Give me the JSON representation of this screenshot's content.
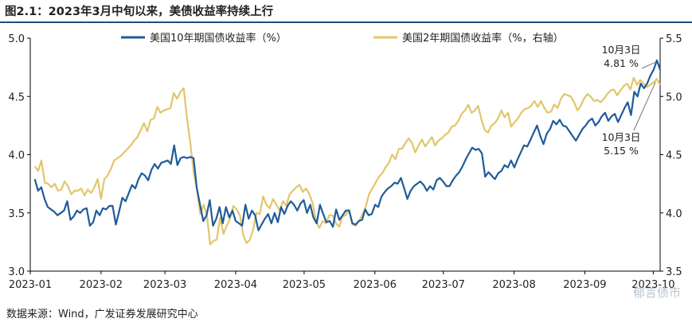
{
  "title": "图2.1：2023年3月中旬以来，美债收益率持续上行",
  "source": "数据来源：Wind，广发证券发展研究中心",
  "watermark": "郁言债市",
  "colors": {
    "series10y": "#1f5c99",
    "series2y": "#e2c66b",
    "axis": "#000000"
  },
  "chart_data": {
    "type": "line",
    "x_ticks": [
      "2023-01",
      "2023-02",
      "2023-03",
      "2023-04",
      "2023-05",
      "2023-06",
      "2023-07",
      "2023-08",
      "2023-09",
      "2023-10"
    ],
    "y_left": {
      "min": 3.0,
      "max": 5.0,
      "ticks": [
        "3.0",
        "3.5",
        "4.0",
        "4.5",
        "5.0"
      ]
    },
    "y_right": {
      "min": 3.5,
      "max": 5.5,
      "ticks": [
        "3.5",
        "4.0",
        "4.5",
        "5.0",
        "5.5"
      ]
    },
    "grid": false,
    "legend": "top",
    "series": [
      {
        "name": "美国10年期国债收益率（%）",
        "axis": "left",
        "start": "2023-01-03",
        "end": "2023-10-04",
        "values": [
          3.79,
          3.69,
          3.72,
          3.62,
          3.55,
          3.53,
          3.51,
          3.48,
          3.5,
          3.52,
          3.6,
          3.44,
          3.47,
          3.52,
          3.5,
          3.53,
          3.54,
          3.39,
          3.42,
          3.52,
          3.48,
          3.54,
          3.53,
          3.56,
          3.56,
          3.4,
          3.51,
          3.63,
          3.6,
          3.67,
          3.74,
          3.71,
          3.79,
          3.84,
          3.82,
          3.78,
          3.87,
          3.92,
          3.88,
          3.93,
          3.94,
          3.95,
          3.92,
          4.08,
          3.91,
          3.97,
          3.98,
          3.97,
          3.98,
          3.97,
          3.71,
          3.57,
          3.43,
          3.48,
          3.61,
          3.39,
          3.45,
          3.55,
          3.41,
          3.55,
          3.46,
          3.52,
          3.43,
          3.41,
          3.39,
          3.57,
          3.45,
          3.52,
          3.48,
          3.35,
          3.4,
          3.45,
          3.49,
          3.41,
          3.5,
          3.42,
          3.55,
          3.49,
          3.56,
          3.6,
          3.57,
          3.52,
          3.58,
          3.61,
          3.5,
          3.57,
          3.46,
          3.41,
          3.57,
          3.49,
          3.42,
          3.43,
          3.38,
          3.53,
          3.44,
          3.48,
          3.52,
          3.52,
          3.41,
          3.4,
          3.43,
          3.44,
          3.53,
          3.48,
          3.49,
          3.57,
          3.55,
          3.64,
          3.68,
          3.71,
          3.73,
          3.76,
          3.75,
          3.8,
          3.71,
          3.62,
          3.69,
          3.73,
          3.75,
          3.77,
          3.74,
          3.69,
          3.73,
          3.7,
          3.78,
          3.8,
          3.77,
          3.73,
          3.73,
          3.78,
          3.82,
          3.85,
          3.9,
          3.96,
          4.01,
          4.06,
          4.04,
          4.05,
          4.01,
          3.81,
          3.85,
          3.82,
          3.79,
          3.84,
          3.86,
          3.91,
          3.89,
          3.95,
          3.89,
          3.96,
          4.02,
          4.08,
          4.07,
          4.13,
          4.19,
          4.25,
          4.16,
          4.09,
          4.18,
          4.22,
          4.29,
          4.26,
          4.3,
          4.25,
          4.24,
          4.2,
          4.16,
          4.12,
          4.17,
          4.22,
          4.25,
          4.29,
          4.31,
          4.25,
          4.28,
          4.33,
          4.36,
          4.29,
          4.33,
          4.35,
          4.28,
          4.34,
          4.4,
          4.45,
          4.34,
          4.54,
          4.5,
          4.61,
          4.57,
          4.61,
          4.68,
          4.73,
          4.81,
          4.73
        ]
      },
      {
        "name": "美国2年期国债收益率（%，右轴）",
        "axis": "right",
        "start": "2023-01-03",
        "end": "2023-10-04",
        "values": [
          4.4,
          4.36,
          4.45,
          4.26,
          4.25,
          4.22,
          4.25,
          4.19,
          4.2,
          4.27,
          4.23,
          4.16,
          4.19,
          4.19,
          4.21,
          4.15,
          4.2,
          4.17,
          4.22,
          4.29,
          4.12,
          4.29,
          4.32,
          4.38,
          4.45,
          4.47,
          4.49,
          4.52,
          4.55,
          4.58,
          4.62,
          4.65,
          4.71,
          4.77,
          4.7,
          4.8,
          4.81,
          4.91,
          4.86,
          4.88,
          4.89,
          4.9,
          5.03,
          4.98,
          5.04,
          5.07,
          4.81,
          4.6,
          4.35,
          4.2,
          3.99,
          4.07,
          3.98,
          3.73,
          3.76,
          3.77,
          3.96,
          3.82,
          3.89,
          3.95,
          4.06,
          4.03,
          3.98,
          3.81,
          3.74,
          3.77,
          3.86,
          4.0,
          3.99,
          4.14,
          4.07,
          4.04,
          4.12,
          4.07,
          4.02,
          4.1,
          4.06,
          4.16,
          4.19,
          4.22,
          4.24,
          4.18,
          4.21,
          4.16,
          4.08,
          3.93,
          3.87,
          3.93,
          3.91,
          3.98,
          3.98,
          3.91,
          3.88,
          3.97,
          3.98,
          4.03,
          3.9,
          3.89,
          3.93,
          3.99,
          4.05,
          4.16,
          4.21,
          4.26,
          4.31,
          4.34,
          4.39,
          4.43,
          4.5,
          4.46,
          4.55,
          4.55,
          4.6,
          4.64,
          4.6,
          4.52,
          4.58,
          4.63,
          4.57,
          4.61,
          4.65,
          4.58,
          4.62,
          4.64,
          4.67,
          4.69,
          4.74,
          4.75,
          4.79,
          4.85,
          4.88,
          4.93,
          4.86,
          4.88,
          4.92,
          4.8,
          4.71,
          4.69,
          4.75,
          4.77,
          4.81,
          4.88,
          4.82,
          4.86,
          4.74,
          4.78,
          4.81,
          4.86,
          4.89,
          4.9,
          4.92,
          4.96,
          4.91,
          4.96,
          4.9,
          4.86,
          4.87,
          4.93,
          4.9,
          4.98,
          5.02,
          5.01,
          5.0,
          4.95,
          4.88,
          4.92,
          4.98,
          5.02,
          5.0,
          4.96,
          4.97,
          4.95,
          4.98,
          5.02,
          5.05,
          5.06,
          5.01,
          5.05,
          5.09,
          5.11,
          5.06,
          5.16,
          5.1,
          5.14,
          5.11,
          5.08,
          5.1,
          5.12,
          5.15,
          5.1
        ]
      }
    ],
    "annotations": [
      {
        "label_date": "10月3日",
        "label_value": "4.81 %",
        "series": "美国10年期国债收益率（%）",
        "date": "2023-10-03",
        "value": 4.81
      },
      {
        "label_date": "10月3日",
        "label_value": "5.15 %",
        "series": "美国2年期国债收益率（%，右轴）",
        "date": "2023-10-03",
        "value": 5.15
      }
    ]
  }
}
